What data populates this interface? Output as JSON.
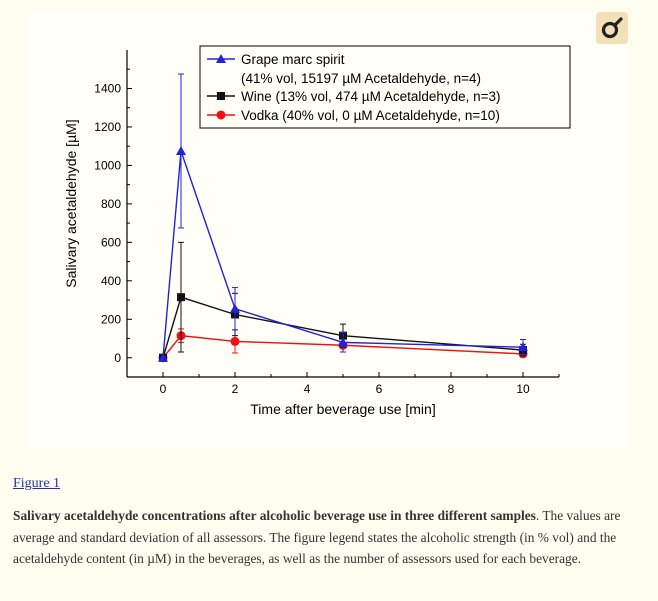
{
  "figure": {
    "link_label": "Figure 1",
    "caption_title": "Salivary acetaldehyde concentrations after alcoholic beverage use in three different samples",
    "caption_body": ". The values are average and standard deviation of all assessors. The figure legend states the alcoholic strength (in % vol) and the acetaldehyde content (in µM) in the beverages, as well as the number of assessors used for each beverage.",
    "zoom_icon": "magnify-icon"
  },
  "colors": {
    "grape": "#2222dd",
    "wine": "#111111",
    "vodka": "#ee1111"
  },
  "chart_data": {
    "type": "line",
    "xlabel": "Time after beverage use [min]",
    "ylabel": "Salivary acetaldehyde [µM]",
    "xlim": [
      -1,
      11
    ],
    "ylim": [
      -100,
      1600
    ],
    "xticks": [
      0,
      2,
      4,
      6,
      8,
      10
    ],
    "yticks": [
      0,
      200,
      400,
      600,
      800,
      1000,
      1200,
      1400
    ],
    "legend_position": "top-right",
    "series": [
      {
        "name": "Grape marc spirit",
        "legend_line1": "Grape marc spirit",
        "legend_line2": "(41% vol, 15197 µM Acetaldehyde, n=4)",
        "marker": "triangle",
        "color": "#2222dd",
        "x": [
          0,
          0.5,
          2,
          5,
          10
        ],
        "y": [
          0,
          1075,
          255,
          80,
          55
        ],
        "err": [
          0,
          400,
          110,
          50,
          40
        ]
      },
      {
        "name": "Wine",
        "legend_line1": "Wine (13% vol, 474 µM Acetaldehyde, n=3)",
        "legend_line2": "",
        "marker": "square",
        "color": "#111111",
        "x": [
          0,
          0.5,
          2,
          5,
          10
        ],
        "y": [
          0,
          315,
          225,
          115,
          40
        ],
        "err": [
          0,
          285,
          110,
          60,
          30
        ]
      },
      {
        "name": "Vodka",
        "legend_line1": "Vodka (40% vol, 0 µM Acetaldehyde, n=10)",
        "legend_line2": "",
        "marker": "circle",
        "color": "#ee1111",
        "x": [
          0,
          0.5,
          2,
          5,
          10
        ],
        "y": [
          0,
          115,
          85,
          65,
          20
        ],
        "err": [
          0,
          35,
          60,
          35,
          15
        ]
      }
    ]
  }
}
